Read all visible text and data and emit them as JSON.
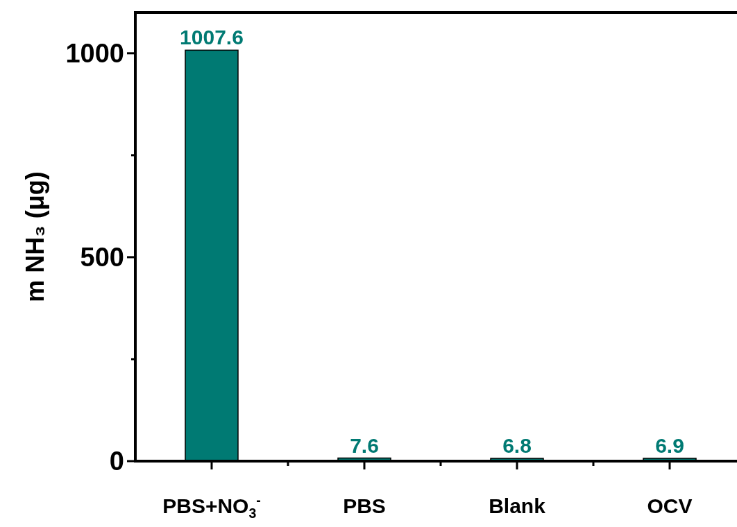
{
  "chart_data": {
    "type": "bar",
    "categories": [
      "PBS+NO$_{3}$$^{-}$",
      "PBS",
      "Blank",
      "OCV"
    ],
    "series": [
      {
        "color": "#007a73",
        "values": [
          1007.6,
          7.6,
          6.8,
          6.9
        ]
      }
    ],
    "ylabel": "m NH₃ (μg)",
    "ylim": [
      0,
      1100
    ],
    "yticks": [
      0,
      {
        "value": 250,
        "label": null
      },
      500,
      {
        "value": 750,
        "label": null
      },
      1000
    ],
    "data_labels": true,
    "grid": false
  }
}
